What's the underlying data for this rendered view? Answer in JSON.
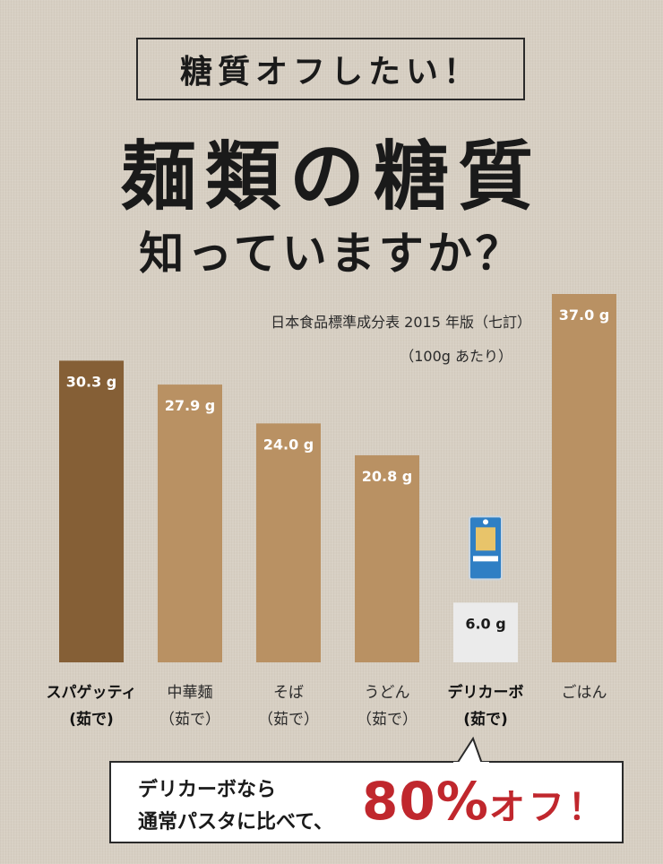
{
  "kicker": "糖質オフしたい！",
  "headline_line1": "麺類の糖質",
  "headline_line2": "知っていますか？",
  "source_line1": "日本食品標準成分表 2015 年版（七訂）",
  "source_line2": "（100g あたり）",
  "colors": {
    "highlight_bar": "#855f36",
    "bar": "#b99163",
    "product_bar": "#ebebeb",
    "accent": "#c0272d"
  },
  "product_icon": "package-icon",
  "chart_data": {
    "type": "bar",
    "title": "",
    "xlabel": "",
    "ylabel": "",
    "categories": [
      [
        "スパゲッティ",
        "(茹で)"
      ],
      [
        "中華麺",
        "（茹で）"
      ],
      [
        "そば",
        "（茹で）"
      ],
      [
        "うどん",
        "（茹で）"
      ],
      [
        "デリカーボ",
        "(茹で)"
      ],
      [
        "ごはん"
      ]
    ],
    "values": [
      30.3,
      27.9,
      24.0,
      20.8,
      6.0,
      37.0
    ],
    "value_labels": [
      "30.3 g",
      "27.9 g",
      "24.0 g",
      "20.8 g",
      "6.0 g",
      "37.0 g"
    ],
    "unit": "g",
    "ylim": [
      0,
      37.0
    ],
    "grid": false
  },
  "callout": {
    "line1": "デリカーボなら",
    "line2": "通常パスタに比べて、",
    "big_number": "80%",
    "big_suffix": "オフ！"
  }
}
